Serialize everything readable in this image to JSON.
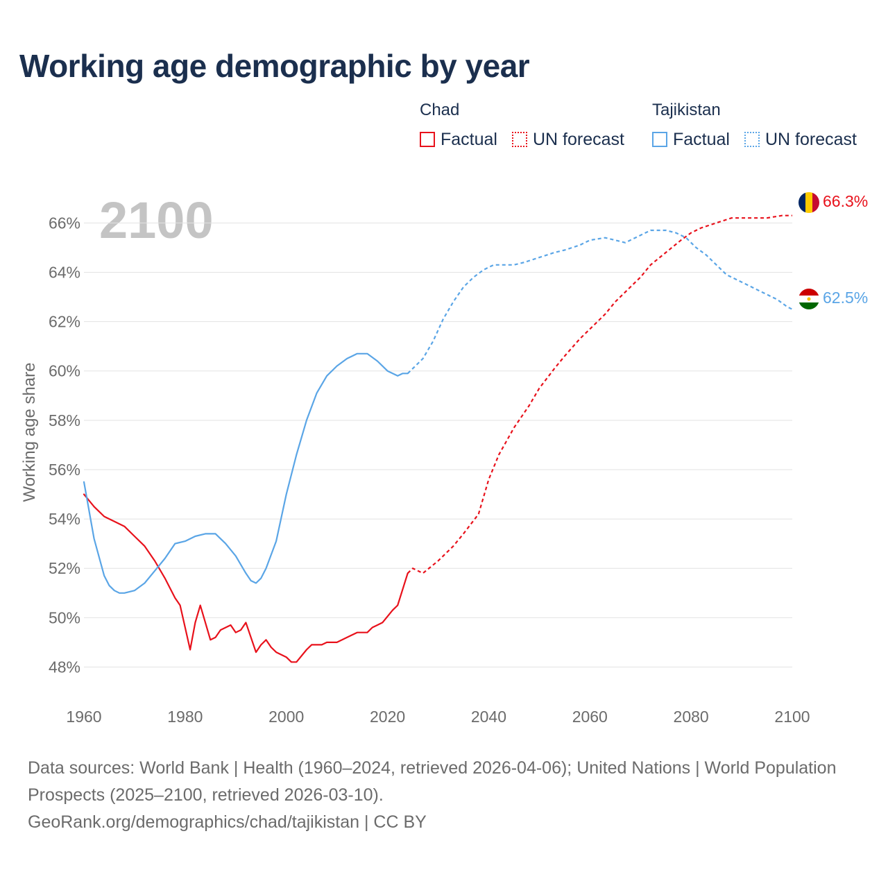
{
  "title": "Working age demographic by year",
  "legend": {
    "groups": [
      {
        "country": "Chad",
        "color": "#e8111b",
        "factual_label": "Factual",
        "forecast_label": "UN forecast"
      },
      {
        "country": "Tajikistan",
        "color": "#5aa5e6",
        "factual_label": "Factual",
        "forecast_label": "UN forecast"
      }
    ]
  },
  "year_watermark": "2100",
  "end_labels": {
    "chad": "66.3%",
    "tajikistan": "62.5%"
  },
  "footer": {
    "sources": "Data sources: World Bank | Health (1960–2024, retrieved 2026-04-06); United Nations | World Population Prospects (2025–2100, retrieved 2026-03-10).",
    "credit": "GeoRank.org/demographics/chad/tajikistan | CC BY"
  },
  "chart_data": {
    "type": "line",
    "title": "Working age demographic by year",
    "xlabel": "",
    "ylabel": "Working age share",
    "xlim": [
      1960,
      2100
    ],
    "ylim": [
      47,
      67.5
    ],
    "x_ticks": [
      1960,
      1980,
      2000,
      2020,
      2040,
      2060,
      2080,
      2100
    ],
    "y_ticks": [
      48,
      50,
      52,
      54,
      56,
      58,
      60,
      62,
      64,
      66
    ],
    "y_tick_labels": [
      "48%",
      "50%",
      "52%",
      "54%",
      "56%",
      "58%",
      "60%",
      "62%",
      "64%",
      "66%"
    ],
    "grid": true,
    "series": [
      {
        "name": "Chad",
        "segment": "Factual",
        "color": "#e8111b",
        "style": "solid",
        "x": [
          1960,
          1962,
          1964,
          1966,
          1968,
          1970,
          1972,
          1974,
          1976,
          1978,
          1979,
          1981,
          1982,
          1983,
          1985,
          1986,
          1987,
          1989,
          1990,
          1991,
          1992,
          1994,
          1995,
          1996,
          1997,
          1998,
          2000,
          2001,
          2002,
          2004,
          2005,
          2007,
          2008,
          2010,
          2012,
          2014,
          2016,
          2017,
          2018,
          2019,
          2021,
          2022,
          2024
        ],
        "values": [
          55.0,
          54.5,
          54.1,
          53.9,
          53.7,
          53.3,
          52.9,
          52.3,
          51.6,
          50.8,
          50.5,
          48.7,
          49.8,
          50.5,
          49.1,
          49.2,
          49.5,
          49.7,
          49.4,
          49.5,
          49.8,
          48.6,
          48.9,
          49.1,
          48.8,
          48.6,
          48.4,
          48.2,
          48.2,
          48.7,
          48.9,
          48.9,
          49.0,
          49.0,
          49.2,
          49.4,
          49.4,
          49.6,
          49.7,
          49.8,
          50.3,
          50.5,
          51.8
        ]
      },
      {
        "name": "Chad",
        "segment": "UN forecast",
        "color": "#e8111b",
        "style": "dashed",
        "x": [
          2024,
          2025,
          2027,
          2030,
          2033,
          2035,
          2038,
          2040,
          2042,
          2045,
          2048,
          2050,
          2053,
          2055,
          2058,
          2060,
          2063,
          2065,
          2068,
          2070,
          2072,
          2075,
          2078,
          2080,
          2082,
          2085,
          2088,
          2090,
          2095,
          2098,
          2099,
          2100
        ],
        "values": [
          51.8,
          52.0,
          51.8,
          52.3,
          52.9,
          53.4,
          54.2,
          55.6,
          56.6,
          57.7,
          58.6,
          59.3,
          60.1,
          60.6,
          61.3,
          61.7,
          62.3,
          62.8,
          63.4,
          63.8,
          64.3,
          64.8,
          65.3,
          65.6,
          65.8,
          66.0,
          66.2,
          66.2,
          66.2,
          66.3,
          66.3,
          66.3
        ]
      },
      {
        "name": "Tajikistan",
        "segment": "Factual",
        "color": "#5aa5e6",
        "style": "solid",
        "x": [
          1960,
          1962,
          1964,
          1965,
          1966,
          1967,
          1968,
          1970,
          1972,
          1974,
          1976,
          1978,
          1980,
          1982,
          1984,
          1986,
          1988,
          1990,
          1992,
          1993,
          1994,
          1995,
          1996,
          1998,
          2000,
          2002,
          2004,
          2006,
          2008,
          2010,
          2012,
          2014,
          2016,
          2018,
          2020,
          2022,
          2023,
          2024
        ],
        "values": [
          55.5,
          53.2,
          51.7,
          51.3,
          51.1,
          51.0,
          51.0,
          51.1,
          51.4,
          51.9,
          52.4,
          53.0,
          53.1,
          53.3,
          53.4,
          53.4,
          53.0,
          52.5,
          51.8,
          51.5,
          51.4,
          51.6,
          52.0,
          53.1,
          55.0,
          56.6,
          58.0,
          59.1,
          59.8,
          60.2,
          60.5,
          60.7,
          60.7,
          60.4,
          60.0,
          59.8,
          59.9,
          59.9
        ]
      },
      {
        "name": "Tajikistan",
        "segment": "UN forecast",
        "color": "#5aa5e6",
        "style": "dashed",
        "x": [
          2024,
          2025,
          2027,
          2029,
          2031,
          2033,
          2035,
          2037,
          2039,
          2041,
          2043,
          2045,
          2047,
          2050,
          2053,
          2055,
          2058,
          2060,
          2063,
          2065,
          2067,
          2070,
          2072,
          2075,
          2077,
          2079,
          2081,
          2083,
          2085,
          2087,
          2089,
          2091,
          2093,
          2095,
          2097,
          2099,
          2100
        ],
        "values": [
          59.9,
          60.1,
          60.5,
          61.2,
          62.1,
          62.8,
          63.4,
          63.8,
          64.1,
          64.3,
          64.3,
          64.3,
          64.4,
          64.6,
          64.8,
          64.9,
          65.1,
          65.3,
          65.4,
          65.3,
          65.2,
          65.5,
          65.7,
          65.7,
          65.6,
          65.4,
          65.0,
          64.7,
          64.3,
          63.9,
          63.7,
          63.5,
          63.3,
          63.1,
          62.9,
          62.6,
          62.5
        ]
      }
    ]
  }
}
